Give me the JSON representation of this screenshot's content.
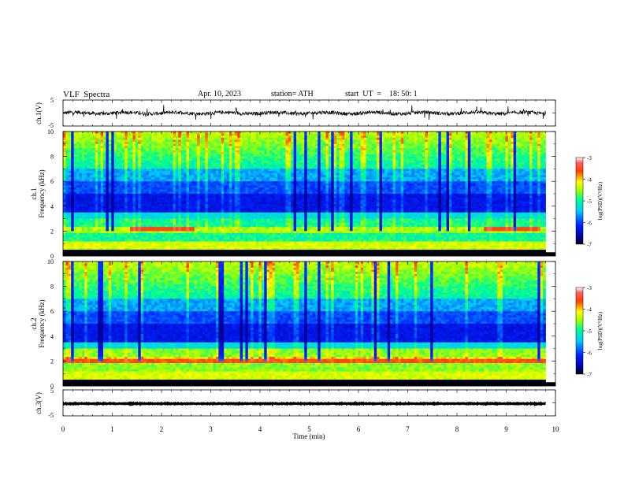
{
  "header": {
    "title": "VLF  Spectra",
    "date": "Apr. 10, 2023",
    "station": "station= ATH",
    "start_ut": "start  UT  =    18: 50: 1"
  },
  "chart_data": {
    "type": "heatmap",
    "x_axis": {
      "label": "Time  (min)",
      "range": [
        0,
        10
      ],
      "ticks": [
        0,
        1,
        2,
        3,
        4,
        5,
        6,
        7,
        8,
        9,
        10
      ]
    },
    "panels": [
      {
        "id": "ch1-waveform",
        "type": "line",
        "ylabel": "ch.1(V)",
        "ylim": [
          -5,
          5
        ],
        "yticks": [
          5,
          -5
        ],
        "offset": 0
      },
      {
        "id": "ch1-spectrogram",
        "type": "heatmap",
        "ylabel_lines": [
          "ch.1",
          "Frequency  (kHz)"
        ],
        "ylim": [
          0,
          10
        ],
        "yticks": [
          0,
          2,
          4,
          6,
          8,
          10
        ],
        "colorbar": {
          "label": "log(PSD)(V²/Hz)",
          "range": [
            -7,
            -3
          ],
          "ticks": [
            -3,
            -4,
            -5,
            -6,
            -7
          ]
        }
      },
      {
        "id": "ch2-spectrogram",
        "type": "heatmap",
        "ylabel_lines": [
          "ch.2",
          "Frequency  (kHz)"
        ],
        "ylim": [
          0,
          10
        ],
        "yticks": [
          0,
          2,
          4,
          6,
          8,
          10
        ],
        "colorbar": {
          "label": "log(PSD)(V²/Hz)",
          "range": [
            -7,
            -3
          ],
          "ticks": [
            -3,
            -4,
            -5,
            -6,
            -7
          ]
        }
      },
      {
        "id": "ch3-waveform",
        "type": "line",
        "ylabel": "ch.3(V)",
        "ylim": [
          -5,
          5
        ],
        "yticks": [
          5,
          -5
        ],
        "offset": -0.3
      }
    ]
  },
  "colors": {
    "spectrum": [
      "#000000",
      "#0000a0",
      "#0020ff",
      "#00c8ff",
      "#00ff90",
      "#a0ff00",
      "#ffff00",
      "#ff6000",
      "#ff0000",
      "#ffffff"
    ]
  }
}
